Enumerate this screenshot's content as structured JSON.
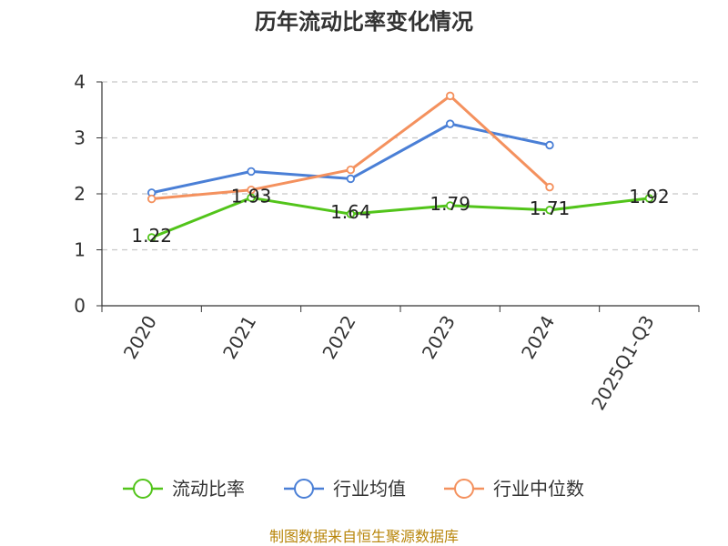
{
  "chart_data": {
    "type": "line",
    "title": "历年流动比率变化情况",
    "categories": [
      "2020",
      "2021",
      "2022",
      "2023",
      "2024",
      "2025Q1-Q3"
    ],
    "ylim": [
      0,
      4
    ],
    "yticks": [
      0,
      1,
      2,
      3,
      4
    ],
    "grid": true,
    "legend_position": "bottom",
    "series": [
      {
        "name": "流动比率",
        "color": "#52c41a",
        "values": [
          1.22,
          1.93,
          1.64,
          1.79,
          1.71,
          1.92
        ],
        "labels": [
          "1.22",
          "1.93",
          "1.64",
          "1.79",
          "1.71",
          "1.92"
        ]
      },
      {
        "name": "行业均值",
        "color": "#4a7fd6",
        "values": [
          2.02,
          2.4,
          2.27,
          3.25,
          2.87,
          null
        ]
      },
      {
        "name": "行业中位数",
        "color": "#f4915e",
        "values": [
          1.91,
          2.07,
          2.43,
          3.75,
          2.12,
          null
        ]
      }
    ],
    "source": "制图数据来自恒生聚源数据库"
  }
}
